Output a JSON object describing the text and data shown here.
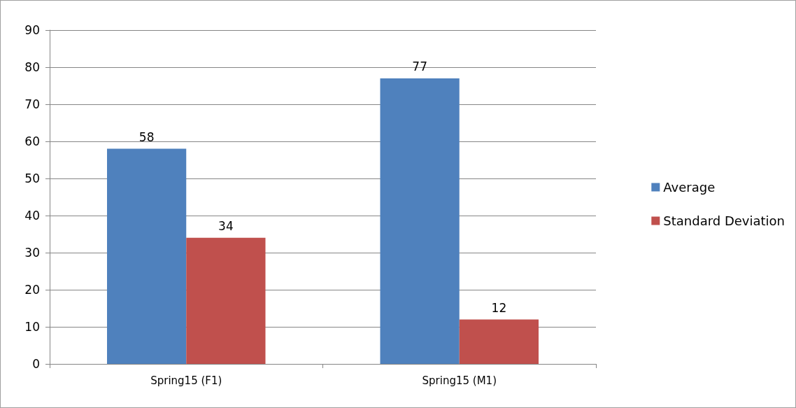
{
  "chart_data": {
    "type": "bar",
    "categories": [
      "Spring15 (F1)",
      "Spring15 (M1)"
    ],
    "series": [
      {
        "name": "Average",
        "color": "#4f81bd",
        "values": [
          58,
          77
        ]
      },
      {
        "name": "Standard Deviation",
        "color": "#c0504d",
        "values": [
          34,
          12
        ]
      }
    ],
    "ylim": [
      0,
      90
    ],
    "yticks": [
      0,
      10,
      20,
      30,
      40,
      50,
      60,
      70,
      80,
      90
    ],
    "grid": "y",
    "legend": "right",
    "data_labels": true
  }
}
